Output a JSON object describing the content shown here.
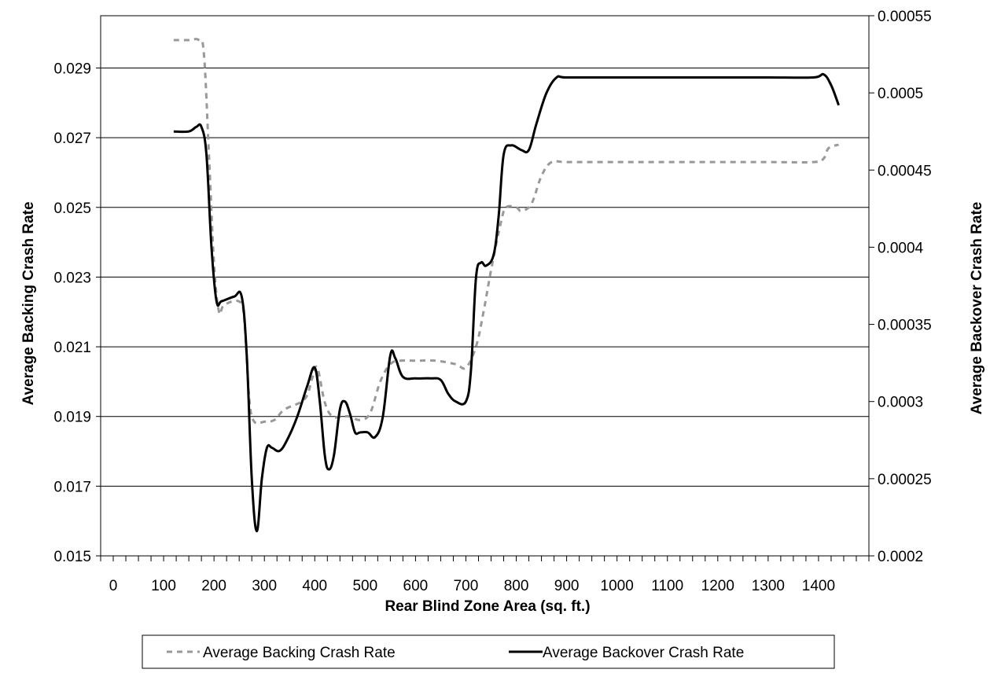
{
  "chart_data": {
    "type": "line",
    "xlabel": "Rear Blind Zone Area (sq. ft.)",
    "ylabel_left": "Average Backing Crash Rate",
    "ylabel_right": "Average Backover Crash Rate",
    "x_ticks": [
      "0",
      "100",
      "200",
      "300",
      "400",
      "500",
      "600",
      "700",
      "800",
      "900",
      "1000",
      "1100",
      "1200",
      "1300",
      "1400"
    ],
    "xlim": [
      -25,
      1500
    ],
    "y_left_ticks": [
      "0.015",
      "0.017",
      "0.019",
      "0.021",
      "0.023",
      "0.025",
      "0.027",
      "0.029"
    ],
    "y_left_lim": [
      0.015,
      0.0305
    ],
    "y_right_ticks": [
      "0.0002",
      "0.00025",
      "0.0003",
      "0.00035",
      "0.0004",
      "0.00045",
      "0.0005",
      "0.00055"
    ],
    "y_right_lim": [
      0.0002,
      0.00055
    ],
    "grid": "horizontal",
    "legend_position": "bottom",
    "series": [
      {
        "name": "Average Backing Crash Rate",
        "axis": "left",
        "style": "dashed",
        "color": "#999999",
        "points": [
          [
            120,
            0.0298
          ],
          [
            150,
            0.0298
          ],
          [
            170,
            0.0298
          ],
          [
            180,
            0.0294
          ],
          [
            190,
            0.0265
          ],
          [
            200,
            0.0234
          ],
          [
            210,
            0.022
          ],
          [
            220,
            0.0222
          ],
          [
            250,
            0.0223
          ],
          [
            260,
            0.0218
          ],
          [
            270,
            0.0195
          ],
          [
            280,
            0.01885
          ],
          [
            300,
            0.01885
          ],
          [
            320,
            0.0189
          ],
          [
            340,
            0.0192
          ],
          [
            380,
            0.0195
          ],
          [
            395,
            0.0201
          ],
          [
            405,
            0.0204
          ],
          [
            420,
            0.0194
          ],
          [
            435,
            0.019
          ],
          [
            455,
            0.019
          ],
          [
            470,
            0.019
          ],
          [
            490,
            0.0189
          ],
          [
            510,
            0.0191
          ],
          [
            530,
            0.02
          ],
          [
            550,
            0.0205
          ],
          [
            570,
            0.0206
          ],
          [
            600,
            0.0206
          ],
          [
            640,
            0.0206
          ],
          [
            680,
            0.0205
          ],
          [
            700,
            0.0204
          ],
          [
            720,
            0.021
          ],
          [
            735,
            0.022
          ],
          [
            750,
            0.0232
          ],
          [
            770,
            0.0246
          ],
          [
            780,
            0.025
          ],
          [
            800,
            0.025
          ],
          [
            810,
            0.0249
          ],
          [
            830,
            0.0251
          ],
          [
            850,
            0.0259
          ],
          [
            870,
            0.0263
          ],
          [
            900,
            0.0263
          ],
          [
            1000,
            0.0263
          ],
          [
            1100,
            0.0263
          ],
          [
            1200,
            0.0263
          ],
          [
            1300,
            0.0263
          ],
          [
            1390,
            0.0263
          ],
          [
            1410,
            0.0264
          ],
          [
            1420,
            0.0267
          ],
          [
            1440,
            0.0268
          ]
        ]
      },
      {
        "name": "Average Backover Crash Rate",
        "axis": "right",
        "style": "solid",
        "color": "#000000",
        "points": [
          [
            120,
            0.000475
          ],
          [
            150,
            0.000475
          ],
          [
            165,
            0.000478
          ],
          [
            175,
            0.000478
          ],
          [
            185,
            0.00046
          ],
          [
            195,
            0.0004
          ],
          [
            205,
            0.000365
          ],
          [
            215,
            0.000365
          ],
          [
            240,
            0.000368
          ],
          [
            255,
            0.000368
          ],
          [
            265,
            0.00033
          ],
          [
            275,
            0.00025
          ],
          [
            285,
            0.000216
          ],
          [
            295,
            0.00025
          ],
          [
            305,
            0.00027
          ],
          [
            315,
            0.00027
          ],
          [
            330,
            0.000268
          ],
          [
            345,
            0.000275
          ],
          [
            365,
            0.00029
          ],
          [
            385,
            0.00031
          ],
          [
            400,
            0.000322
          ],
          [
            410,
            0.0003
          ],
          [
            420,
            0.000265
          ],
          [
            428,
            0.000256
          ],
          [
            438,
            0.000265
          ],
          [
            450,
            0.000295
          ],
          [
            460,
            0.0003
          ],
          [
            470,
            0.000292
          ],
          [
            480,
            0.00028
          ],
          [
            490,
            0.00028
          ],
          [
            505,
            0.00028
          ],
          [
            520,
            0.000277
          ],
          [
            535,
            0.00029
          ],
          [
            550,
            0.00033
          ],
          [
            560,
            0.000328
          ],
          [
            575,
            0.000316
          ],
          [
            600,
            0.000315
          ],
          [
            630,
            0.000315
          ],
          [
            650,
            0.000314
          ],
          [
            665,
            0.000305
          ],
          [
            680,
            0.0003
          ],
          [
            700,
            0.0003
          ],
          [
            710,
            0.00032
          ],
          [
            720,
            0.00038
          ],
          [
            730,
            0.00039
          ],
          [
            740,
            0.000388
          ],
          [
            755,
            0.000395
          ],
          [
            765,
            0.00042
          ],
          [
            775,
            0.00046
          ],
          [
            790,
            0.000466
          ],
          [
            810,
            0.000463
          ],
          [
            825,
            0.000463
          ],
          [
            840,
            0.00048
          ],
          [
            860,
            0.0005
          ],
          [
            880,
            0.00051
          ],
          [
            900,
            0.00051
          ],
          [
            1000,
            0.00051
          ],
          [
            1100,
            0.00051
          ],
          [
            1200,
            0.00051
          ],
          [
            1300,
            0.00051
          ],
          [
            1390,
            0.00051
          ],
          [
            1410,
            0.000512
          ],
          [
            1425,
            0.000505
          ],
          [
            1440,
            0.000492
          ]
        ]
      }
    ]
  }
}
